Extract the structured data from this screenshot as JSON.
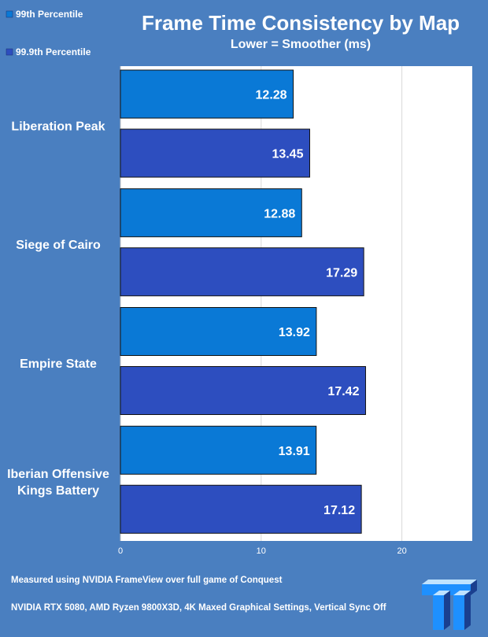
{
  "colors": {
    "background": "#4a7fc0",
    "plot_area": "#ffffff",
    "series_1": "#0a79d6",
    "series_2": "#2d4ebf",
    "bar_border": "#111111"
  },
  "logo_icon": "tt-logo-icon",
  "footnotes": [
    "Measured using NVIDIA FrameView over full game of Conquest",
    "NVIDIA RTX 5080, AMD Ryzen 9800X3D, 4K Maxed Graphical Settings, Vertical Sync Off"
  ],
  "chart_data": {
    "type": "bar",
    "orientation": "horizontal",
    "title": "Frame Time Consistency by Map",
    "subtitle": "Lower = Smoother (ms)",
    "categories": [
      [
        "Liberation Peak"
      ],
      [
        "Siege of Cairo"
      ],
      [
        "Empire State"
      ],
      [
        "Iberian Offensive",
        "Kings Battery"
      ]
    ],
    "series": [
      {
        "name": "99th Percentile",
        "values": [
          12.28,
          12.88,
          13.92,
          13.91
        ]
      },
      {
        "name": "99.9th Percentile",
        "values": [
          13.45,
          17.29,
          17.42,
          17.12
        ]
      }
    ],
    "xlim": [
      0,
      25
    ],
    "xticks": [
      0,
      10,
      20
    ],
    "legend_position": "top-left",
    "grid": true
  }
}
